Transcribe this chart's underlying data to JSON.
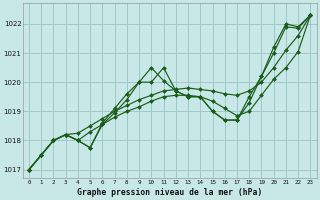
{
  "title": "Graphe pression niveau de la mer (hPa)",
  "background_color": "#c8e8e8",
  "grid_color": "#a0c8c8",
  "line_color": "#1a5c1a",
  "marker_color": "#1a5c1a",
  "xlim": [
    -0.5,
    23.5
  ],
  "ylim": [
    1016.7,
    1022.7
  ],
  "xticks": [
    0,
    1,
    2,
    3,
    4,
    5,
    6,
    7,
    8,
    9,
    10,
    11,
    12,
    13,
    14,
    15,
    16,
    17,
    18,
    19,
    20,
    21,
    22,
    23
  ],
  "yticks": [
    1017,
    1018,
    1019,
    1020,
    1021,
    1022
  ],
  "series": [
    [
      1017.0,
      1017.5,
      1018.0,
      1018.2,
      1018.0,
      1017.75,
      1018.6,
      1019.1,
      1019.6,
      1020.0,
      1020.0,
      1020.5,
      1019.7,
      1019.5,
      1019.5,
      1019.0,
      1018.7,
      1018.7,
      1019.3,
      1020.2,
      1021.0,
      1021.9,
      1021.85,
      1022.3
    ],
    [
      1017.0,
      1017.5,
      1018.0,
      1018.2,
      1018.25,
      1018.5,
      1018.75,
      1019.0,
      1019.2,
      1019.4,
      1019.55,
      1019.7,
      1019.75,
      1019.8,
      1019.75,
      1019.7,
      1019.6,
      1019.55,
      1019.7,
      1020.0,
      1020.5,
      1021.1,
      1021.6,
      1022.3
    ],
    [
      1017.0,
      1017.5,
      1018.0,
      1018.2,
      1018.0,
      1018.3,
      1018.55,
      1018.8,
      1019.0,
      1019.15,
      1019.35,
      1019.5,
      1019.55,
      1019.55,
      1019.5,
      1019.35,
      1019.1,
      1018.85,
      1019.0,
      1019.55,
      1020.1,
      1020.5,
      1021.05,
      1022.3
    ],
    [
      1017.0,
      1017.5,
      1018.0,
      1018.2,
      1018.0,
      1017.75,
      1018.55,
      1018.95,
      1019.4,
      1020.0,
      1020.5,
      1020.05,
      1019.7,
      1019.5,
      1019.5,
      1019.0,
      1018.7,
      1018.7,
      1019.5,
      1020.2,
      1021.2,
      1022.0,
      1021.9,
      1022.3
    ]
  ]
}
